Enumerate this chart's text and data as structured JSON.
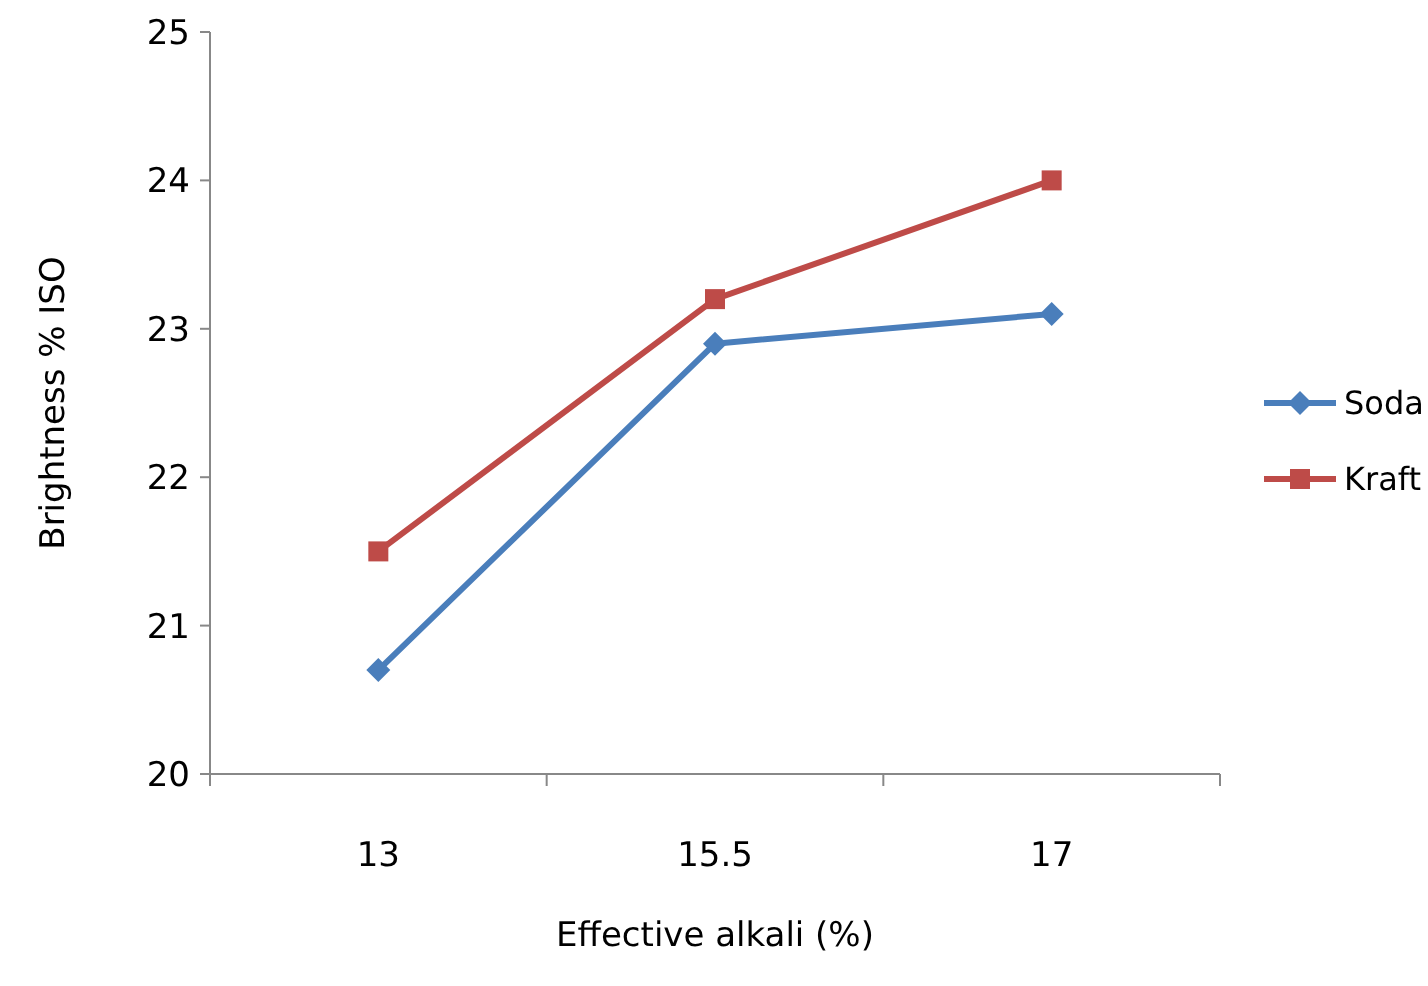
{
  "chart_data": {
    "type": "line",
    "xlabel": "Effective alkali (%)",
    "ylabel": "Brightness % ISO",
    "categories": [
      "13",
      "15.5",
      "17"
    ],
    "series": [
      {
        "name": "Soda",
        "color": "#4a7ebb",
        "values": [
          20.7,
          22.9,
          23.1
        ],
        "marker": "diamond"
      },
      {
        "name": "Kraft",
        "color": "#be4b48",
        "values": [
          21.5,
          23.2,
          24.0
        ],
        "marker": "square"
      }
    ],
    "ylim": [
      20,
      25
    ],
    "yticks": [
      20,
      21,
      22,
      23,
      24,
      25
    ],
    "grid": false,
    "legend": "right",
    "line_style": "solid"
  }
}
